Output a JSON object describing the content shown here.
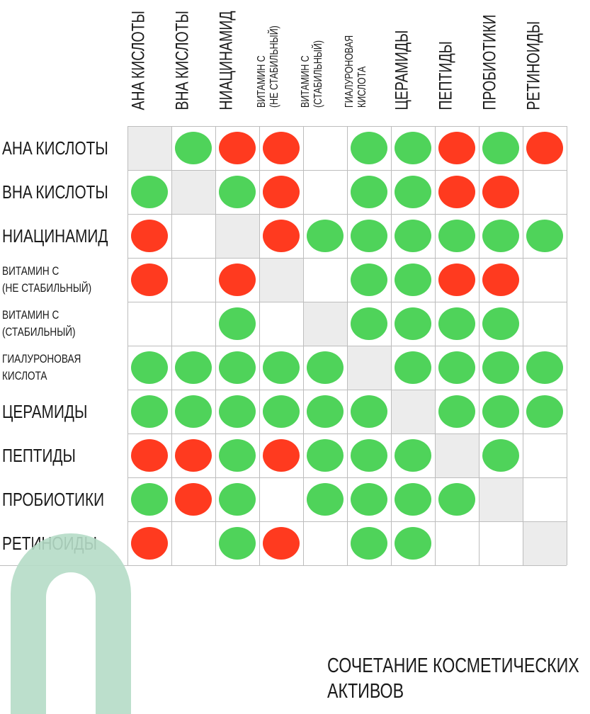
{
  "columns": [
    {
      "label": "AHA КИСЛОТЫ",
      "size": "big"
    },
    {
      "label": "BHA КИСЛОТЫ",
      "size": "big"
    },
    {
      "label": "НИАЦИНАМИД",
      "size": "big"
    },
    {
      "label": "ВИТАМИН С\n(НЕ СТАБИЛЬНЫЙ)",
      "size": "small"
    },
    {
      "label": "ВИТАМИН С\n(СТАБИЛЬНЫЙ)",
      "size": "small"
    },
    {
      "label": "ГИАЛУРОНОВАЯ\nКИСЛОТА",
      "size": "small"
    },
    {
      "label": "ЦЕРАМИДЫ",
      "size": "big"
    },
    {
      "label": "ПЕПТИДЫ",
      "size": "big"
    },
    {
      "label": "ПРОБИОТИКИ",
      "size": "big"
    },
    {
      "label": "РЕТИНОИДЫ",
      "size": "big"
    }
  ],
  "rows": [
    {
      "label": "AHA КИСЛОТЫ",
      "size": "big"
    },
    {
      "label": "BHA КИСЛОТЫ",
      "size": "big"
    },
    {
      "label": "НИАЦИНАМИД",
      "size": "big"
    },
    {
      "label": "ВИТАМИН С\n(НЕ СТАБИЛЬНЫЙ)",
      "size": "small"
    },
    {
      "label": "ВИТАМИН С\n(СТАБИЛЬНЫЙ)",
      "size": "small"
    },
    {
      "label": "ГИАЛУРОНОВАЯ\nКИСЛОТА",
      "size": "small"
    },
    {
      "label": "ЦЕРАМИДЫ",
      "size": "big"
    },
    {
      "label": "ПЕПТИДЫ",
      "size": "big"
    },
    {
      "label": "ПРОБИОТИКИ",
      "size": "big"
    },
    {
      "label": "РЕТИНОИДЫ",
      "size": "big"
    }
  ],
  "matrix": [
    [
      "d",
      "g",
      "r",
      "r",
      "",
      "g",
      "g",
      "r",
      "g",
      "r"
    ],
    [
      "g",
      "d",
      "g",
      "r",
      "",
      "g",
      "g",
      "r",
      "r",
      ""
    ],
    [
      "r",
      "",
      "d",
      "r",
      "g",
      "g",
      "g",
      "g",
      "g",
      "g"
    ],
    [
      "r",
      "",
      "r",
      "d",
      "",
      "g",
      "g",
      "r",
      "r",
      ""
    ],
    [
      "",
      "",
      "g",
      "",
      "d",
      "g",
      "g",
      "g",
      "g",
      ""
    ],
    [
      "g",
      "g",
      "g",
      "g",
      "g",
      "d",
      "g",
      "g",
      "g",
      "g"
    ],
    [
      "g",
      "g",
      "g",
      "g",
      "g",
      "g",
      "d",
      "g",
      "g",
      "g"
    ],
    [
      "r",
      "r",
      "g",
      "r",
      "g",
      "g",
      "g",
      "d",
      "g",
      ""
    ],
    [
      "g",
      "r",
      "g",
      "",
      "g",
      "g",
      "g",
      "g",
      "d",
      ""
    ],
    [
      "r",
      "",
      "g",
      "r",
      "",
      "g",
      "g",
      "",
      "",
      "d"
    ]
  ],
  "legend_colors": {
    "compatible": "#4fd35a",
    "incompatible": "#ff3a1f",
    "diagonal": "#ececec",
    "logo": "#b5dcc6"
  },
  "icons": {
    "logo": "brand-logo-icon"
  },
  "footer": {
    "line1": "СОЧЕТАНИЕ КОСМЕТИЧЕСКИХ",
    "line2": "АКТИВОВ"
  }
}
